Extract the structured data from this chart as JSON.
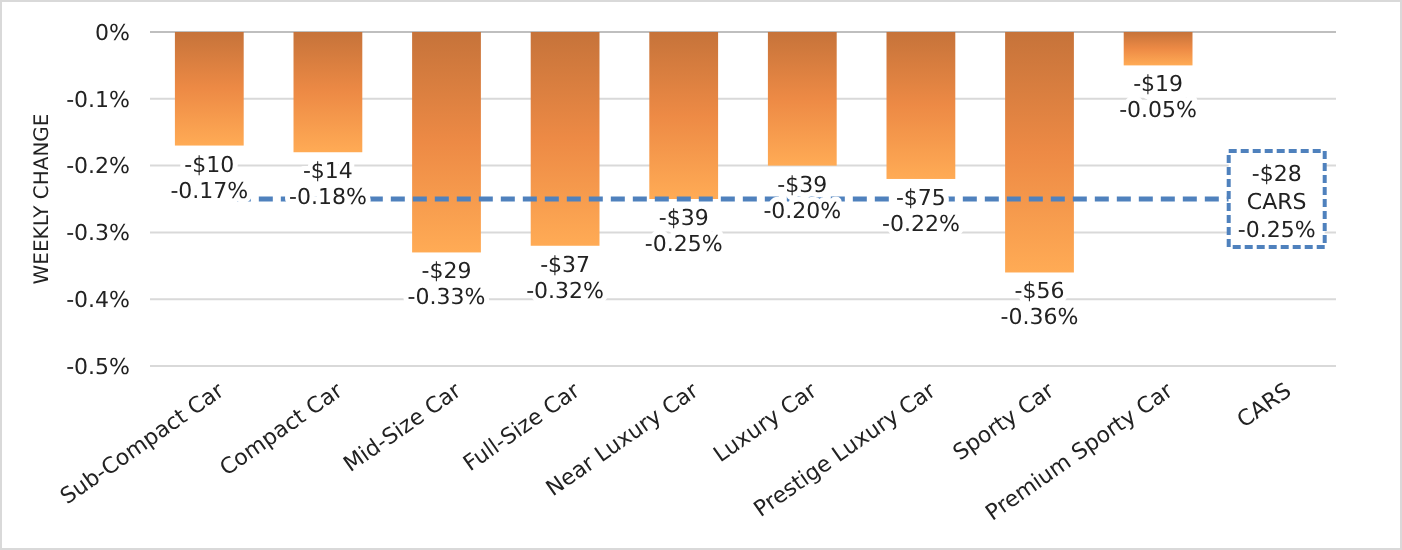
{
  "chart_data": {
    "type": "bar",
    "ylabel": "WEEKLY CHANGE",
    "categories": [
      "Sub-Compact Car",
      "Compact Car",
      "Mid-Size Car",
      "Full-Size Car",
      "Near Luxury Car",
      "Luxury Car",
      "Prestige Luxury Car",
      "Sporty Car",
      "Premium Sporty Car",
      "CARS"
    ],
    "values": [
      -0.17,
      -0.18,
      -0.33,
      -0.32,
      -0.25,
      -0.2,
      -0.22,
      -0.36,
      -0.05,
      null
    ],
    "value_labels": [
      "-$10\n-0.17%",
      "-$14\n-0.18%",
      "-$29\n-0.33%",
      "-$37\n-0.32%",
      "-$39\n-0.25%",
      "-$39\n-0.20%",
      "-$75\n-0.22%",
      "-$56\n-0.36%",
      "-$19\n-0.05%",
      null
    ],
    "color": "#ed8a45",
    "ylim": [
      -0.5,
      0
    ],
    "yticks": [
      {
        "value": 0,
        "label": "0%"
      },
      {
        "value": -0.1,
        "label": "-0.1%"
      },
      {
        "value": -0.2,
        "label": "-0.2%"
      },
      {
        "value": -0.3,
        "label": "-0.3%"
      },
      {
        "value": -0.4,
        "label": "-0.4%"
      },
      {
        "value": -0.5,
        "label": "-0.5%"
      }
    ],
    "grid": "y",
    "ref_lines": [
      {
        "axis": "y",
        "value": -0.25,
        "label": "-$28\nCARS\n-0.25%",
        "color": "#4f81bd",
        "line_style": "dashed"
      }
    ]
  }
}
